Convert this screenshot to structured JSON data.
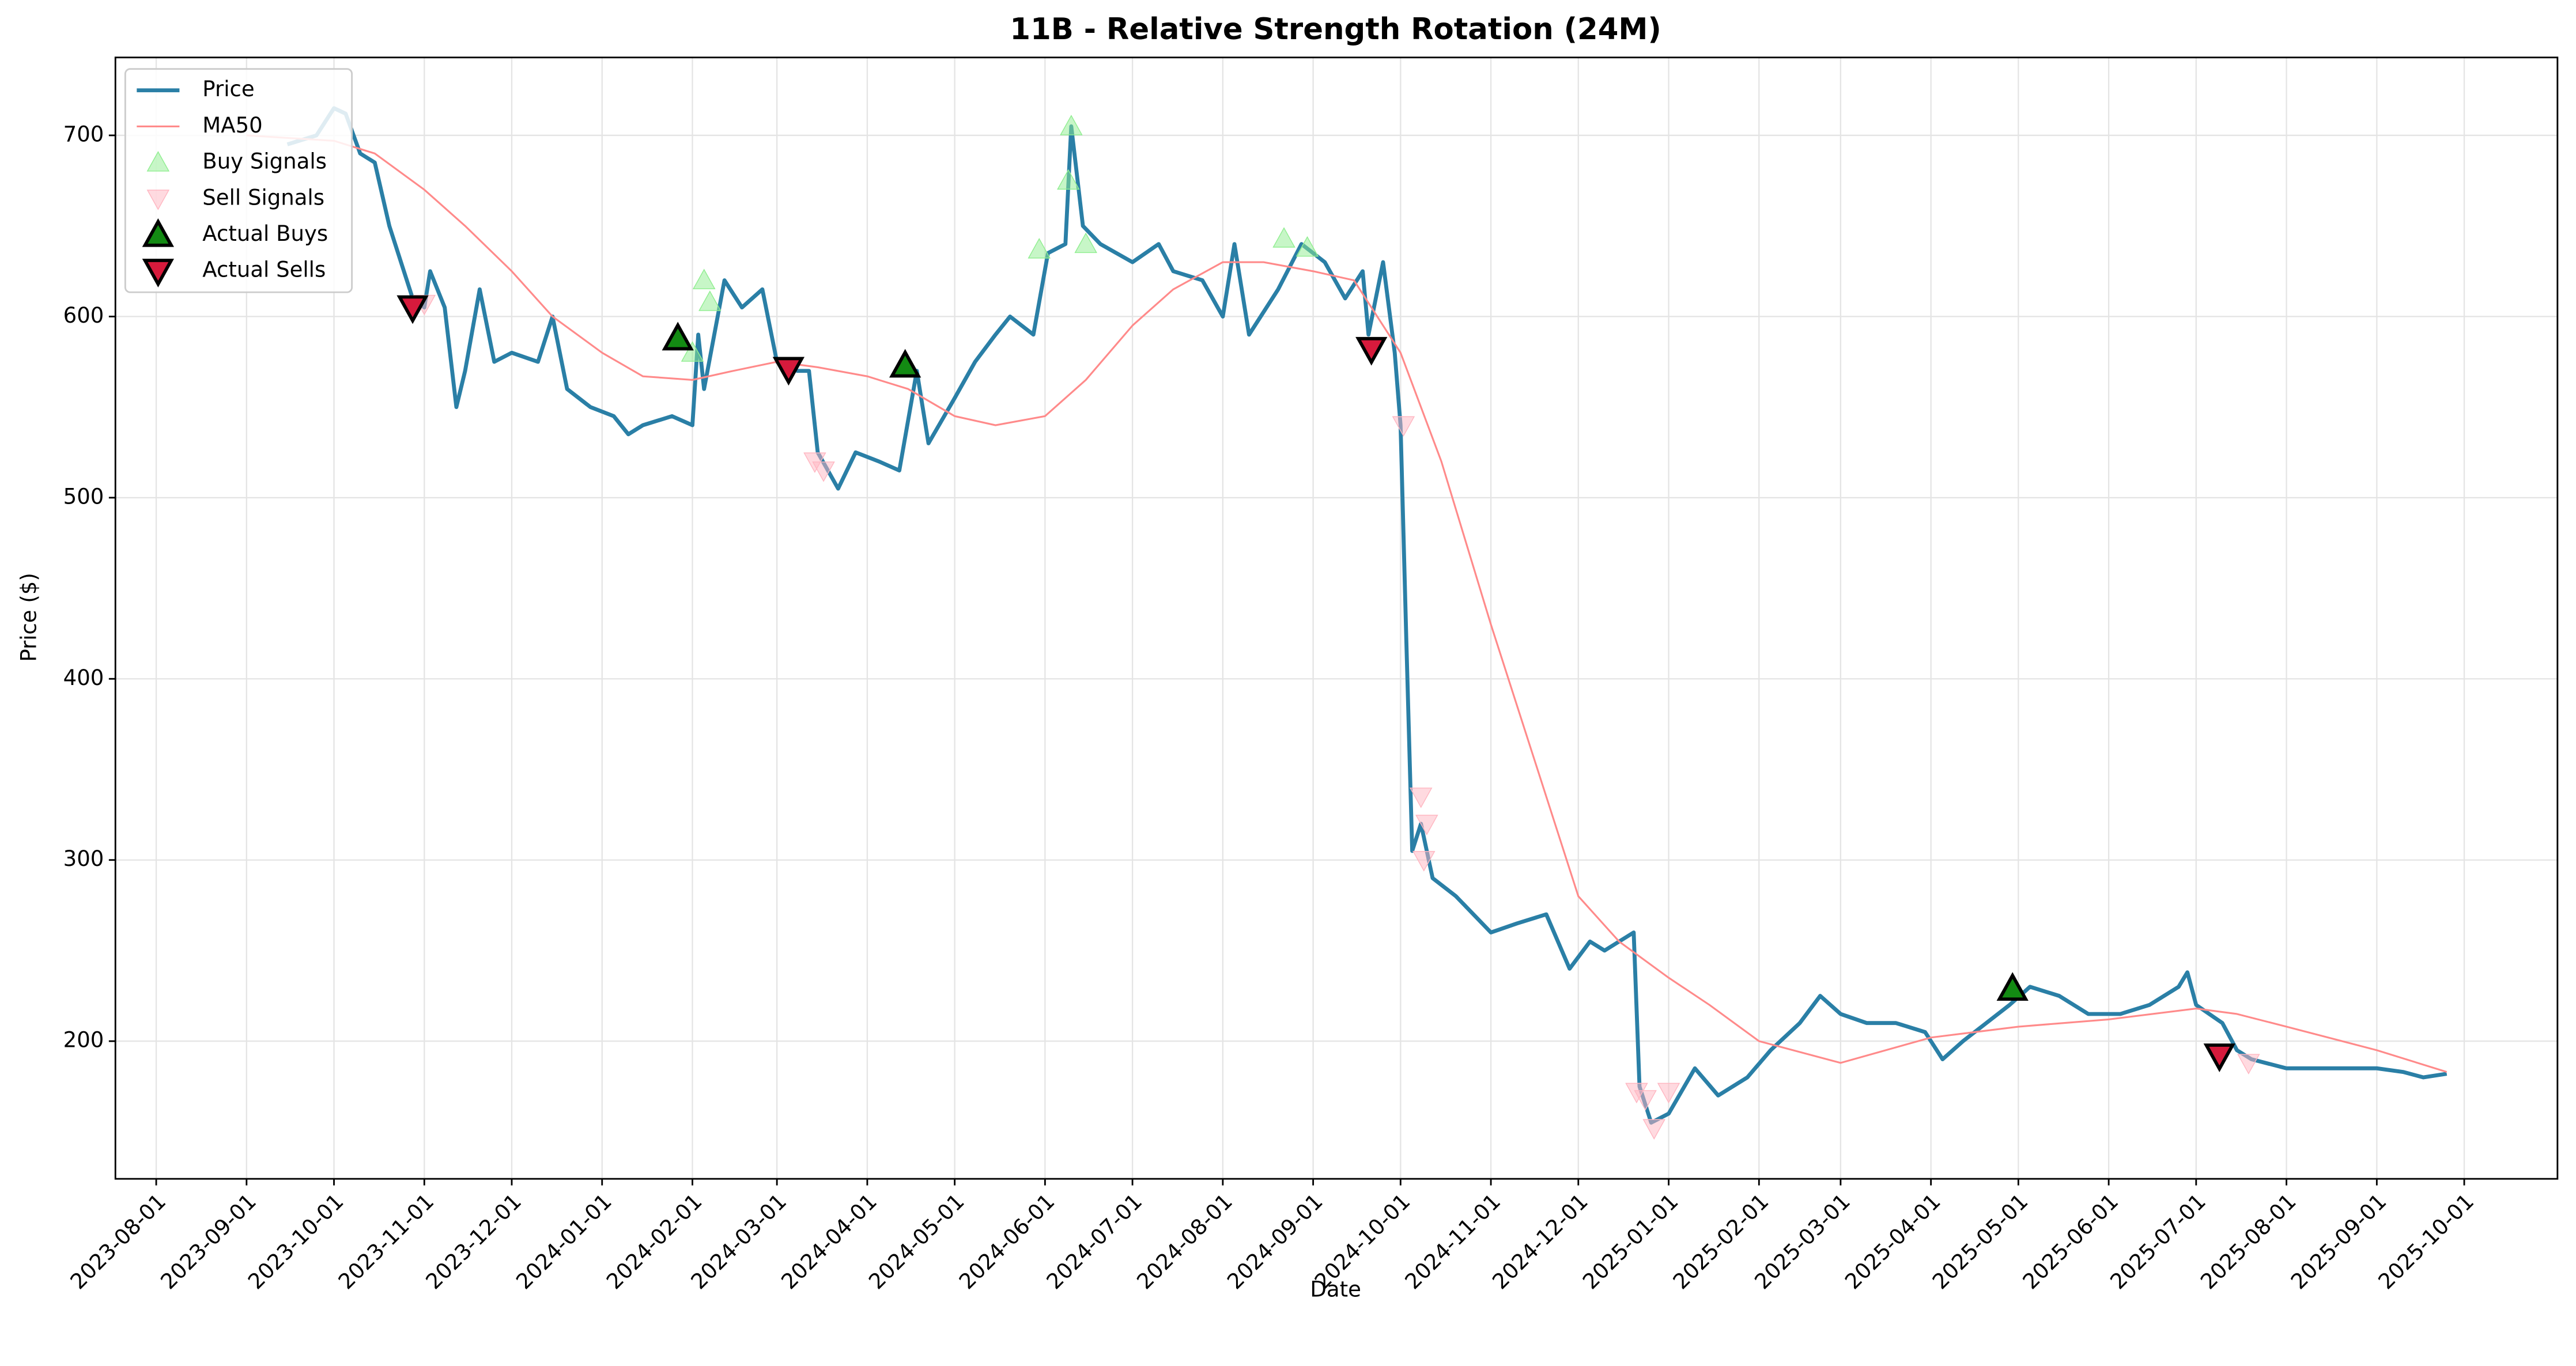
{
  "chart_data": {
    "type": "line",
    "title": "11B - Relative Strength Rotation (24M)",
    "x_label": "Date",
    "y_label": "Price ($)",
    "xlim": [
      "2023-07-18",
      "2025-11-02"
    ],
    "xticks": [
      "2023-08-01",
      "2023-09-01",
      "2023-10-01",
      "2023-11-01",
      "2023-12-01",
      "2024-01-01",
      "2024-02-01",
      "2024-03-01",
      "2024-04-01",
      "2024-05-01",
      "2024-06-01",
      "2024-07-01",
      "2024-08-01",
      "2024-09-01",
      "2024-10-01",
      "2024-11-01",
      "2024-12-01",
      "2025-01-01",
      "2025-02-01",
      "2025-03-01",
      "2025-04-01",
      "2025-05-01",
      "2025-06-01",
      "2025-07-01",
      "2025-08-01",
      "2025-09-01",
      "2025-10-01"
    ],
    "ylim": [
      124,
      743
    ],
    "yticks": [
      200,
      300,
      400,
      500,
      600,
      700
    ],
    "grid": true,
    "legend": "upper left",
    "series": [
      {
        "name": "Price",
        "color": "#2a7fa6",
        "kind": "line",
        "width": 2.4,
        "x": [
          "2023-09-15",
          "2023-09-25",
          "2023-10-01",
          "2023-10-05",
          "2023-10-10",
          "2023-10-15",
          "2023-10-20",
          "2023-10-25",
          "2023-10-28",
          "2023-11-01",
          "2023-11-03",
          "2023-11-08",
          "2023-11-12",
          "2023-11-15",
          "2023-11-20",
          "2023-11-25",
          "2023-12-01",
          "2023-12-10",
          "2023-12-15",
          "2023-12-20",
          "2023-12-28",
          "2024-01-05",
          "2024-01-10",
          "2024-01-15",
          "2024-01-25",
          "2024-02-01",
          "2024-02-03",
          "2024-02-05",
          "2024-02-12",
          "2024-02-18",
          "2024-02-25",
          "2024-03-01",
          "2024-03-08",
          "2024-03-12",
          "2024-03-15",
          "2024-03-22",
          "2024-03-28",
          "2024-04-05",
          "2024-04-12",
          "2024-04-18",
          "2024-04-22",
          "2024-05-01",
          "2024-05-08",
          "2024-05-15",
          "2024-05-20",
          "2024-05-28",
          "2024-06-02",
          "2024-06-08",
          "2024-06-10",
          "2024-06-14",
          "2024-06-20",
          "2024-07-01",
          "2024-07-10",
          "2024-07-15",
          "2024-07-25",
          "2024-08-01",
          "2024-08-05",
          "2024-08-10",
          "2024-08-20",
          "2024-08-28",
          "2024-09-05",
          "2024-09-12",
          "2024-09-18",
          "2024-09-20",
          "2024-09-25",
          "2024-09-29",
          "2024-10-01",
          "2024-10-03",
          "2024-10-05",
          "2024-10-08",
          "2024-10-12",
          "2024-10-20",
          "2024-11-01",
          "2024-11-10",
          "2024-11-20",
          "2024-11-28",
          "2024-12-05",
          "2024-12-10",
          "2024-12-20",
          "2024-12-22",
          "2024-12-26",
          "2025-01-01",
          "2025-01-10",
          "2025-01-18",
          "2025-01-28",
          "2025-02-05",
          "2025-02-15",
          "2025-02-22",
          "2025-03-01",
          "2025-03-10",
          "2025-03-20",
          "2025-03-30",
          "2025-04-05",
          "2025-04-12",
          "2025-04-20",
          "2025-04-28",
          "2025-05-05",
          "2025-05-15",
          "2025-05-25",
          "2025-06-05",
          "2025-06-15",
          "2025-06-25",
          "2025-06-28",
          "2025-07-01",
          "2025-07-10",
          "2025-07-15",
          "2025-07-20",
          "2025-08-01",
          "2025-08-15",
          "2025-09-01",
          "2025-09-10",
          "2025-09-17",
          "2025-09-25"
        ],
        "values": [
          695,
          700,
          715,
          712,
          690,
          685,
          650,
          625,
          610,
          605,
          625,
          605,
          550,
          570,
          615,
          575,
          580,
          575,
          600,
          560,
          550,
          545,
          535,
          540,
          545,
          540,
          590,
          560,
          620,
          605,
          615,
          575,
          570,
          570,
          525,
          505,
          525,
          520,
          515,
          570,
          530,
          555,
          575,
          590,
          600,
          590,
          635,
          640,
          705,
          650,
          640,
          630,
          640,
          625,
          620,
          600,
          640,
          590,
          615,
          640,
          630,
          610,
          625,
          590,
          630,
          580,
          540,
          420,
          305,
          320,
          290,
          280,
          260,
          265,
          270,
          240,
          255,
          250,
          260,
          175,
          155,
          160,
          185,
          170,
          180,
          195,
          210,
          225,
          215,
          210,
          210,
          205,
          190,
          200,
          210,
          220,
          230,
          225,
          215,
          215,
          220,
          230,
          238,
          220,
          210,
          195,
          190,
          185,
          185,
          185,
          183,
          180,
          182
        ]
      },
      {
        "name": "MA50",
        "color": "#ff8a8a",
        "kind": "line",
        "width": 1.1,
        "x": [
          "2023-09-01",
          "2023-10-01",
          "2023-10-15",
          "2023-11-01",
          "2023-11-15",
          "2023-12-01",
          "2023-12-15",
          "2024-01-01",
          "2024-01-15",
          "2024-02-01",
          "2024-02-15",
          "2024-03-01",
          "2024-03-15",
          "2024-04-01",
          "2024-04-15",
          "2024-05-01",
          "2024-05-15",
          "2024-06-01",
          "2024-06-15",
          "2024-07-01",
          "2024-07-15",
          "2024-08-01",
          "2024-08-15",
          "2024-09-01",
          "2024-09-15",
          "2024-10-01",
          "2024-10-15",
          "2024-11-01",
          "2024-11-15",
          "2024-12-01",
          "2024-12-15",
          "2025-01-01",
          "2025-01-15",
          "2025-02-01",
          "2025-03-01",
          "2025-04-01",
          "2025-05-01",
          "2025-06-01",
          "2025-07-01",
          "2025-07-15",
          "2025-08-01",
          "2025-09-01",
          "2025-09-25"
        ],
        "values": [
          700,
          697,
          690,
          670,
          650,
          625,
          600,
          580,
          567,
          565,
          570,
          575,
          572,
          567,
          560,
          545,
          540,
          545,
          565,
          595,
          615,
          630,
          630,
          625,
          620,
          580,
          520,
          430,
          360,
          280,
          255,
          235,
          220,
          200,
          188,
          202,
          208,
          212,
          218,
          215,
          208,
          195,
          183
        ]
      },
      {
        "name": "Buy Signals",
        "color": "#90ee90",
        "kind": "scatter",
        "marker": "up",
        "opacity": 0.5,
        "x": [
          "2024-02-01",
          "2024-02-05",
          "2024-02-07",
          "2024-05-30",
          "2024-06-09",
          "2024-06-10",
          "2024-06-15",
          "2024-08-22",
          "2024-08-30"
        ],
        "values": [
          580,
          620,
          608,
          637,
          675,
          705,
          640,
          643,
          638
        ]
      },
      {
        "name": "Sell Signals",
        "color": "#ffb6c1",
        "kind": "scatter",
        "marker": "down",
        "opacity": 0.5,
        "x": [
          "2023-11-01",
          "2024-03-14",
          "2024-03-17",
          "2024-10-02",
          "2024-10-08",
          "2024-10-10",
          "2024-10-09",
          "2024-12-21",
          "2024-12-24",
          "2024-12-27",
          "2025-01-01",
          "2025-07-19"
        ],
        "values": [
          607,
          520,
          515,
          540,
          335,
          320,
          300,
          172,
          168,
          152,
          172,
          188
        ]
      },
      {
        "name": "Actual Buys",
        "color": "#138a13",
        "kind": "scatter",
        "marker": "up",
        "opacity": 1,
        "x": [
          "2024-01-27",
          "2024-04-14",
          "2025-04-29"
        ],
        "values": [
          588,
          573,
          229
        ]
      },
      {
        "name": "Actual Sells",
        "color": "#d61a3c",
        "kind": "scatter",
        "marker": "down",
        "opacity": 1,
        "x": [
          "2023-10-28",
          "2024-03-05",
          "2024-09-21",
          "2025-07-09"
        ],
        "values": [
          605,
          571,
          582,
          192
        ]
      }
    ]
  }
}
